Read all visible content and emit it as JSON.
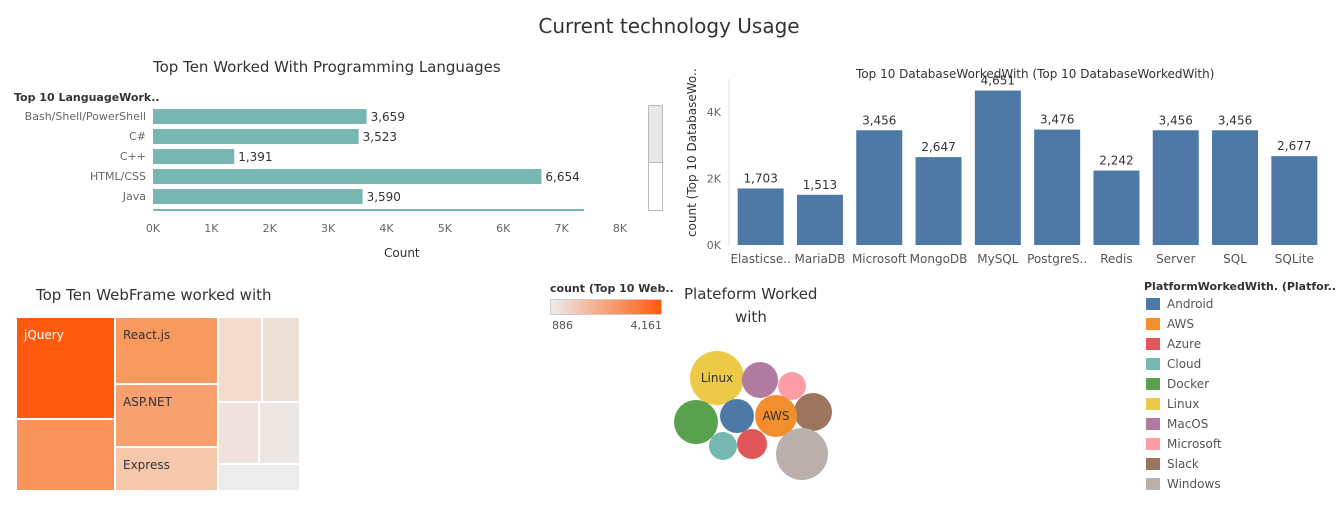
{
  "dashboard_title": "Current technology Usage",
  "chart_data": [
    {
      "id": "languages",
      "type": "bar",
      "orientation": "horizontal",
      "title": "Top Ten Worked With Programming Languages",
      "row_header": "Top 10 LanguageWork..",
      "xlabel": "Count",
      "categories": [
        "Bash/Shell/PowerShell",
        "C#",
        "C++",
        "HTML/CSS",
        "Java"
      ],
      "values": [
        3659,
        3523,
        1391,
        6654,
        3590
      ],
      "value_labels": [
        "3,659",
        "3,523",
        "1,391",
        "6,654",
        "3,590"
      ],
      "xlim": [
        0,
        8000
      ],
      "xticks": [
        "0K",
        "1K",
        "2K",
        "3K",
        "4K",
        "5K",
        "6K",
        "7K",
        "8K"
      ],
      "color": "#76b7b2"
    },
    {
      "id": "databases",
      "type": "bar",
      "title": "Top 10 DatabaseWorkedWith (Top 10 DatabaseWorkedWith)",
      "ylabel": "count (Top 10 DatabaseWo..",
      "categories": [
        "Elasticse..",
        "MariaDB",
        "Microsoft",
        "MongoDB",
        "MySQL",
        "PostgreS..",
        "Redis",
        "Server",
        "SQL",
        "SQLite"
      ],
      "values": [
        1703,
        1513,
        3456,
        2647,
        4651,
        3476,
        2242,
        3456,
        3456,
        2677
      ],
      "value_labels": [
        "1,703",
        "1,513",
        "3,456",
        "2,647",
        "4,651",
        "3,476",
        "2,242",
        "3,456",
        "3,456",
        "2,677"
      ],
      "ylim": [
        0,
        5000
      ],
      "yticks": [
        "0K",
        "2K",
        "4K"
      ],
      "color": "#4e79a7"
    },
    {
      "id": "webframes",
      "type": "heatmap",
      "subtype": "treemap",
      "title": "Top Ten WebFrame worked with",
      "color_legend_title": "count (Top 10 Web..",
      "color_range": [
        886,
        4161
      ],
      "color_range_labels": [
        "886",
        "4,161"
      ],
      "labels": [
        "jQuery",
        "React.js",
        "ASP.NET",
        "Express"
      ]
    },
    {
      "id": "platforms",
      "type": "scatter",
      "subtype": "packed-bubbles",
      "title_line1": "Plateform Worked",
      "title_line2": "with",
      "legend_title": "PlatformWorkedWith. (Platfor..",
      "categories": [
        "Android",
        "AWS",
        "Azure",
        "Cloud",
        "Docker",
        "Linux",
        "MacOS",
        "Microsoft",
        "Slack",
        "Windows"
      ],
      "colors": [
        "#4e79a7",
        "#f28e2b",
        "#e15759",
        "#76b7b2",
        "#59a14f",
        "#edc948",
        "#b07aa1",
        "#ff9da7",
        "#9c755f",
        "#bab0ac"
      ],
      "bubble_labels": [
        "Linux",
        "AWS"
      ]
    }
  ]
}
